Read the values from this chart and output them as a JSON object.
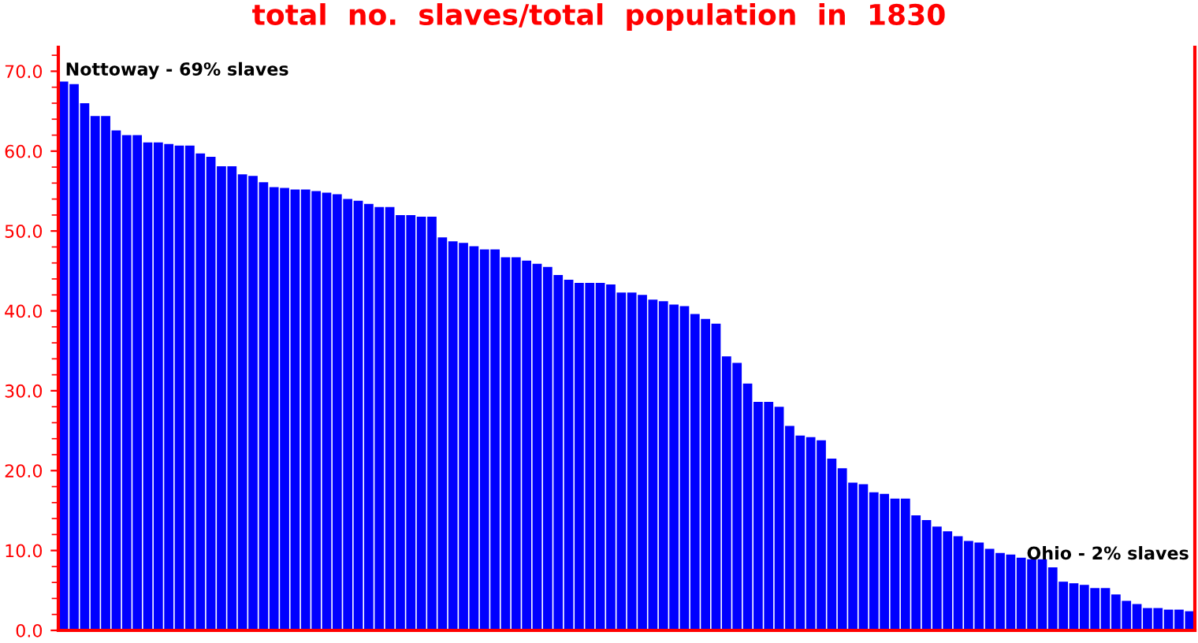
{
  "chart_data": {
    "type": "bar",
    "title": "total  no.  slaves/total  population  in  1830",
    "categories": [
      null,
      null,
      null,
      null,
      null,
      null,
      null,
      null,
      null,
      null,
      null,
      null,
      null,
      null,
      null,
      null,
      null,
      null,
      null,
      null,
      null,
      null,
      null,
      null,
      null,
      null,
      null,
      null,
      null,
      null,
      null,
      null,
      null,
      null,
      null,
      null,
      null,
      null,
      null,
      null,
      null,
      null,
      null,
      null,
      null,
      null,
      null,
      null,
      null,
      null,
      null,
      null,
      null,
      null,
      null,
      null,
      null,
      null,
      null,
      null,
      null,
      null,
      null,
      null,
      null,
      null,
      null,
      null,
      null,
      null,
      null,
      null,
      null,
      null,
      null,
      null,
      null,
      null,
      null,
      null,
      null,
      null,
      null,
      null,
      null,
      null,
      null,
      null,
      null,
      null,
      null,
      null,
      null,
      null,
      null,
      null,
      null,
      null,
      null,
      null,
      null,
      null,
      null,
      null,
      null,
      null,
      null,
      null
    ],
    "values": [
      68.7,
      68.4,
      66.0,
      64.4,
      64.4,
      62.6,
      62.0,
      62.0,
      61.1,
      61.1,
      60.9,
      60.7,
      60.7,
      59.7,
      59.3,
      58.1,
      58.1,
      57.1,
      56.9,
      56.1,
      55.5,
      55.4,
      55.2,
      55.2,
      55.0,
      54.8,
      54.6,
      54.0,
      53.8,
      53.4,
      53.0,
      53.0,
      52.0,
      52.0,
      51.8,
      51.8,
      49.2,
      48.7,
      48.5,
      48.1,
      47.7,
      47.7,
      46.7,
      46.7,
      46.3,
      45.9,
      45.5,
      44.5,
      43.9,
      43.5,
      43.5,
      43.5,
      43.3,
      42.3,
      42.3,
      42.0,
      41.4,
      41.2,
      40.8,
      40.6,
      39.6,
      39.0,
      38.4,
      34.3,
      33.5,
      30.9,
      28.6,
      28.6,
      28.0,
      25.6,
      24.4,
      24.2,
      23.8,
      21.5,
      20.3,
      18.5,
      18.3,
      17.3,
      17.1,
      16.5,
      16.5,
      14.4,
      13.8,
      13.0,
      12.4,
      11.8,
      11.2,
      11.0,
      10.2,
      9.7,
      9.5,
      9.1,
      8.9,
      8.9,
      7.9,
      6.1,
      5.9,
      5.7,
      5.3,
      5.3,
      4.5,
      3.7,
      3.3,
      2.8,
      2.8,
      2.6,
      2.6,
      2.4
    ],
    "color": "#0000ff",
    "ylim": [
      0,
      73
    ],
    "yticks": [
      {
        "value": 0,
        "label": "0.0"
      },
      {
        "value": 10,
        "label": "10.0"
      },
      {
        "value": 20,
        "label": "20.0"
      },
      {
        "value": 30,
        "label": "30.0"
      },
      {
        "value": 40,
        "label": "40.0"
      },
      {
        "value": 50,
        "label": "50.0"
      },
      {
        "value": 60,
        "label": "60.0"
      },
      {
        "value": 70,
        "label": "70.0"
      }
    ],
    "grid": false,
    "legend": false,
    "annotations": [
      "Nottoway - 69% slaves",
      "Ohio - 2% slaves"
    ]
  }
}
